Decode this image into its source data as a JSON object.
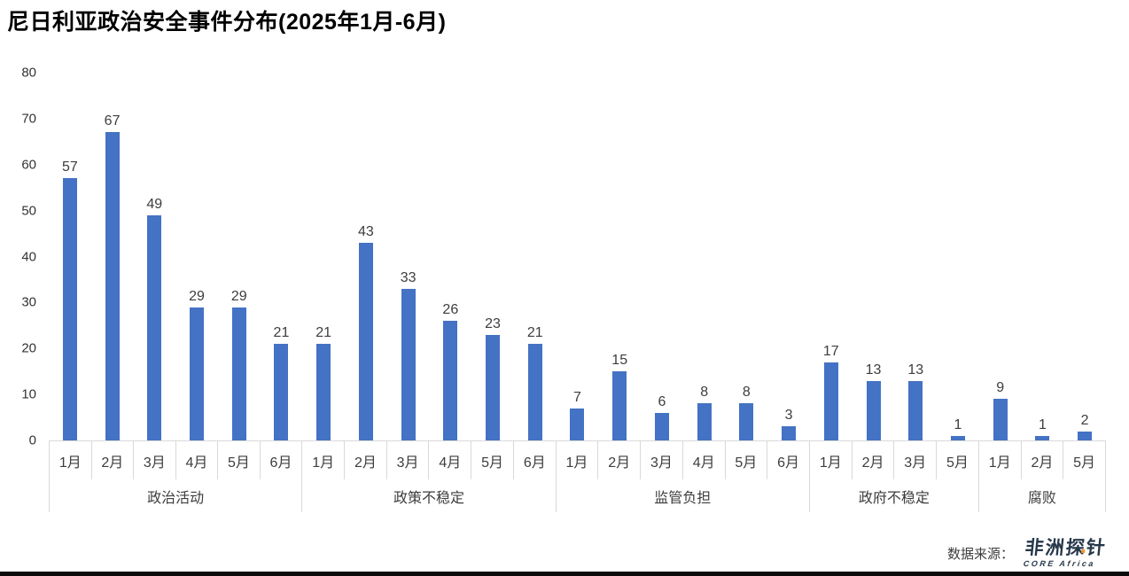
{
  "chart_data": {
    "type": "bar",
    "title": "尼日利亚政治安全事件分布(2025年1月-6月)",
    "xlabel": "",
    "ylabel": "",
    "ylim": [
      0,
      80
    ],
    "yticks": [
      0,
      10,
      20,
      30,
      40,
      50,
      60,
      70,
      80
    ],
    "bar_color": "#4472C4",
    "grid": false,
    "legend": false,
    "groups": [
      {
        "category": "政治活动",
        "months": [
          "1月",
          "2月",
          "3月",
          "4月",
          "5月",
          "6月"
        ],
        "values": [
          57,
          67,
          49,
          29,
          29,
          21
        ]
      },
      {
        "category": "政策不稳定",
        "months": [
          "1月",
          "2月",
          "3月",
          "4月",
          "5月",
          "6月"
        ],
        "values": [
          21,
          43,
          33,
          26,
          23,
          21
        ]
      },
      {
        "category": "监管负担",
        "months": [
          "1月",
          "2月",
          "3月",
          "4月",
          "5月",
          "6月"
        ],
        "values": [
          7,
          15,
          6,
          8,
          8,
          3
        ]
      },
      {
        "category": "政府不稳定",
        "months": [
          "1月",
          "2月",
          "3月",
          "5月"
        ],
        "values": [
          17,
          13,
          13,
          1
        ]
      },
      {
        "category": "腐败",
        "months": [
          "1月",
          "2月",
          "5月"
        ],
        "values": [
          9,
          1,
          2
        ]
      }
    ]
  },
  "footer": {
    "source_label": "数据来源：",
    "logo_text": "非洲探针",
    "logo_subtext": "CORE Africa"
  }
}
